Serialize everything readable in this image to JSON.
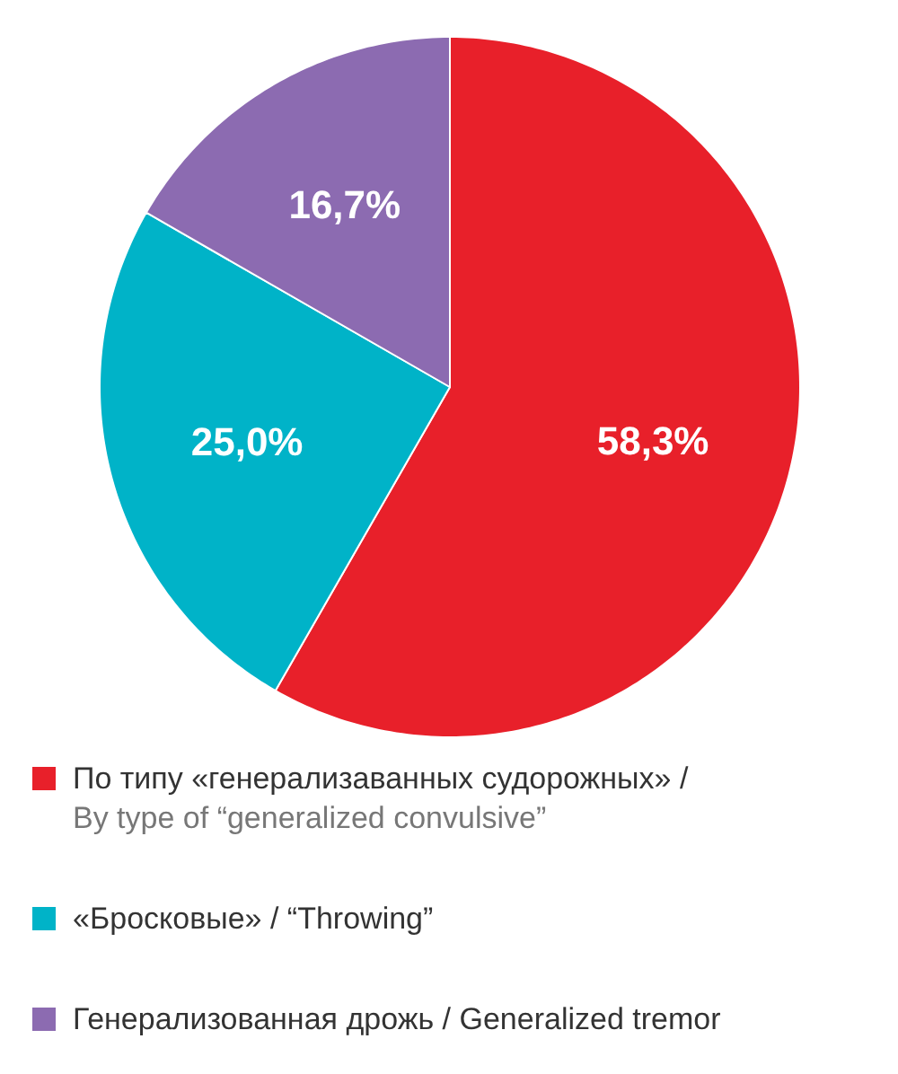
{
  "chart_data": {
    "type": "pie",
    "categories": [
      "По типу «генерализаванных судорожных» / By type of “generalized convulsive”",
      "«Бросковые» / “Throwing”",
      "Генерализованная дрожь / Generalized tremor"
    ],
    "values": [
      58.3,
      25.0,
      16.7
    ],
    "value_labels": [
      "58,3%",
      "25,0%",
      "16,7%"
    ],
    "colors": [
      "#e8202a",
      "#00b3c8",
      "#8c6bb1"
    ],
    "legend": "bottom"
  }
}
